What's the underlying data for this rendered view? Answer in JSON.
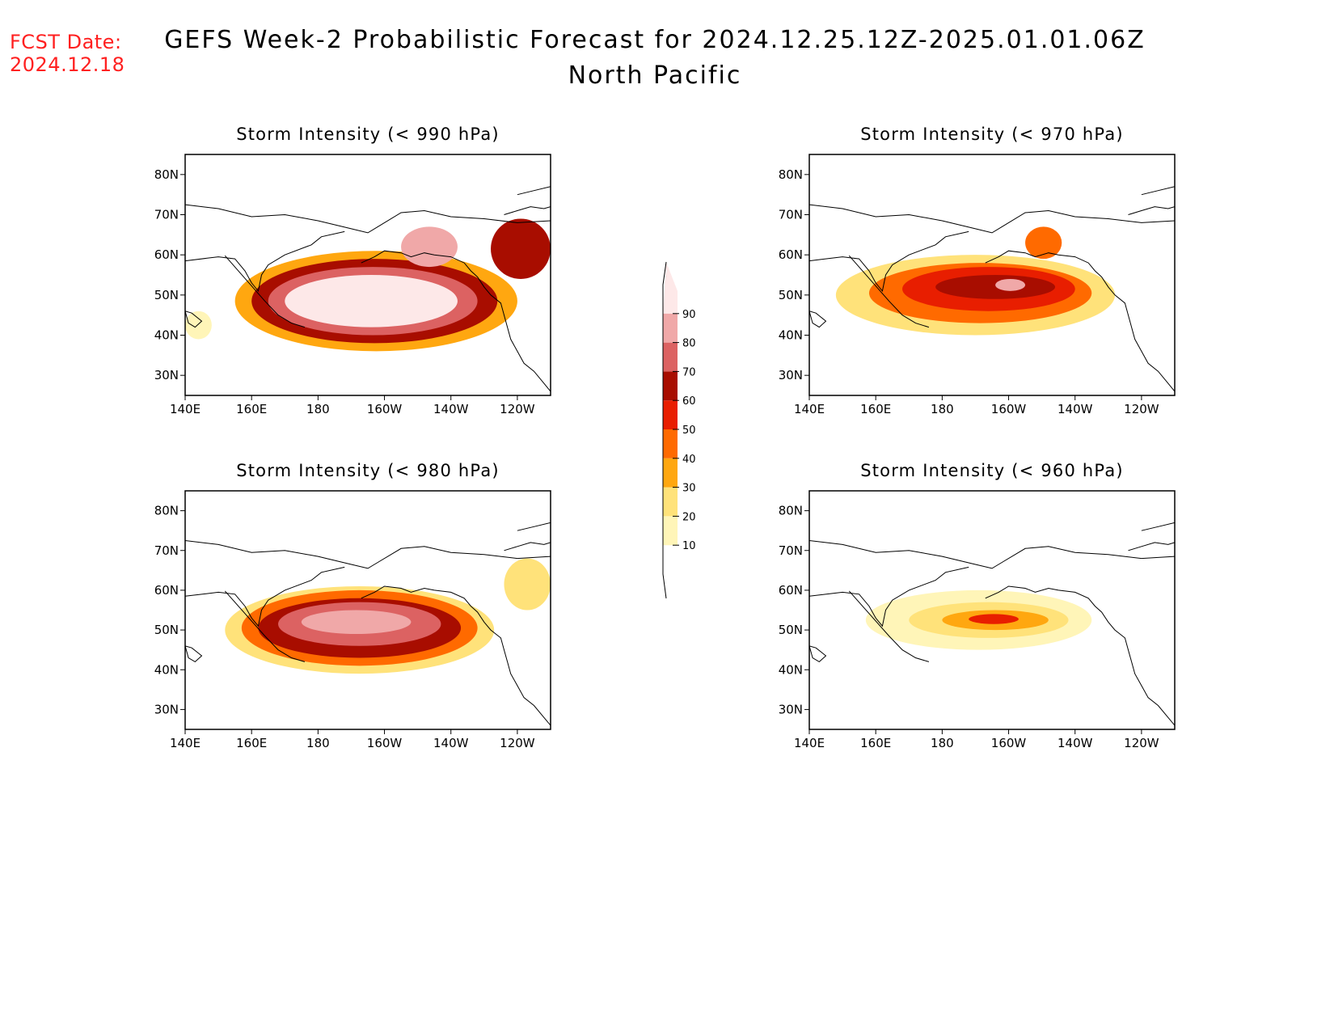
{
  "header": {
    "fcst_label": "FCST Date:",
    "fcst_date": "2024.12.18",
    "title": "GEFS Week-2 Probabilistic Forecast for 2024.12.25.12Z-2025.01.01.06Z",
    "subtitle": "North Pacific"
  },
  "colors": {
    "fcst_date": "#ff2020",
    "levels": [
      "#ffffff",
      "#fff5b8",
      "#ffe27a",
      "#ffa710",
      "#ff6a00",
      "#e81e00",
      "#a80d00",
      "#dc6262",
      "#f0a8a8",
      "#fde8e8"
    ]
  },
  "colorbar": {
    "levels": [
      10,
      20,
      30,
      40,
      50,
      60,
      70,
      80,
      90
    ]
  },
  "axes": {
    "lat_labels": [
      "80N",
      "70N",
      "60N",
      "50N",
      "40N",
      "30N"
    ],
    "lat_values": [
      80,
      70,
      60,
      50,
      40,
      30
    ],
    "lon_labels": [
      "140E",
      "160E",
      "180",
      "160W",
      "140W",
      "120W"
    ],
    "lon_values": [
      140,
      160,
      180,
      200,
      220,
      240
    ],
    "lon_range": [
      140,
      250
    ],
    "lat_range": [
      25,
      85
    ]
  },
  "panels": [
    {
      "id": "p990",
      "title": "Storm Intensity (< 990 hPa)",
      "blobs": [
        {
          "lon": [
            155,
            240
          ],
          "lat": [
            36,
            61
          ],
          "p": 35
        },
        {
          "lon": [
            160,
            234
          ],
          "lat": [
            38,
            59
          ],
          "p": 62
        },
        {
          "lon": [
            165,
            228
          ],
          "lat": [
            40,
            57
          ],
          "p": 75
        },
        {
          "lon": [
            170,
            222
          ],
          "lat": [
            42,
            55
          ],
          "p": 92
        },
        {
          "lon": [
            205,
            222
          ],
          "lat": [
            57,
            67
          ],
          "p": 85
        },
        {
          "lon": [
            232,
            250
          ],
          "lat": [
            54,
            69
          ],
          "p": 62
        },
        {
          "lon": [
            140,
            148
          ],
          "lat": [
            39,
            46
          ],
          "p": 18
        }
      ]
    },
    {
      "id": "p970",
      "title": "Storm Intensity (< 970 hPa)",
      "blobs": [
        {
          "lon": [
            148,
            232
          ],
          "lat": [
            40,
            60
          ],
          "p": 24
        },
        {
          "lon": [
            158,
            225
          ],
          "lat": [
            43,
            58
          ],
          "p": 42
        },
        {
          "lon": [
            168,
            220
          ],
          "lat": [
            46,
            57
          ],
          "p": 56
        },
        {
          "lon": [
            178,
            214
          ],
          "lat": [
            49,
            55
          ],
          "p": 66
        },
        {
          "lon": [
            196,
            205
          ],
          "lat": [
            51,
            54
          ],
          "p": 82
        },
        {
          "lon": [
            205,
            216
          ],
          "lat": [
            59,
            67
          ],
          "p": 45
        }
      ]
    },
    {
      "id": "p980",
      "title": "Storm Intensity (< 980 hPa)",
      "blobs": [
        {
          "lon": [
            152,
            233
          ],
          "lat": [
            39,
            61
          ],
          "p": 28
        },
        {
          "lon": [
            157,
            228
          ],
          "lat": [
            41,
            60
          ],
          "p": 47
        },
        {
          "lon": [
            162,
            223
          ],
          "lat": [
            43,
            58
          ],
          "p": 63
        },
        {
          "lon": [
            168,
            217
          ],
          "lat": [
            46,
            57
          ],
          "p": 78
        },
        {
          "lon": [
            175,
            208
          ],
          "lat": [
            49,
            55
          ],
          "p": 88
        },
        {
          "lon": [
            236,
            250
          ],
          "lat": [
            55,
            68
          ],
          "p": 22
        }
      ]
    },
    {
      "id": "p960",
      "title": "Storm Intensity (< 960 hPa)",
      "blobs": [
        {
          "lon": [
            157,
            225
          ],
          "lat": [
            45,
            60
          ],
          "p": 15
        },
        {
          "lon": [
            170,
            218
          ],
          "lat": [
            48,
            57
          ],
          "p": 26
        },
        {
          "lon": [
            180,
            212
          ],
          "lat": [
            50,
            55
          ],
          "p": 38
        },
        {
          "lon": [
            188,
            203
          ],
          "lat": [
            51.5,
            54
          ],
          "p": 55
        }
      ]
    }
  ]
}
